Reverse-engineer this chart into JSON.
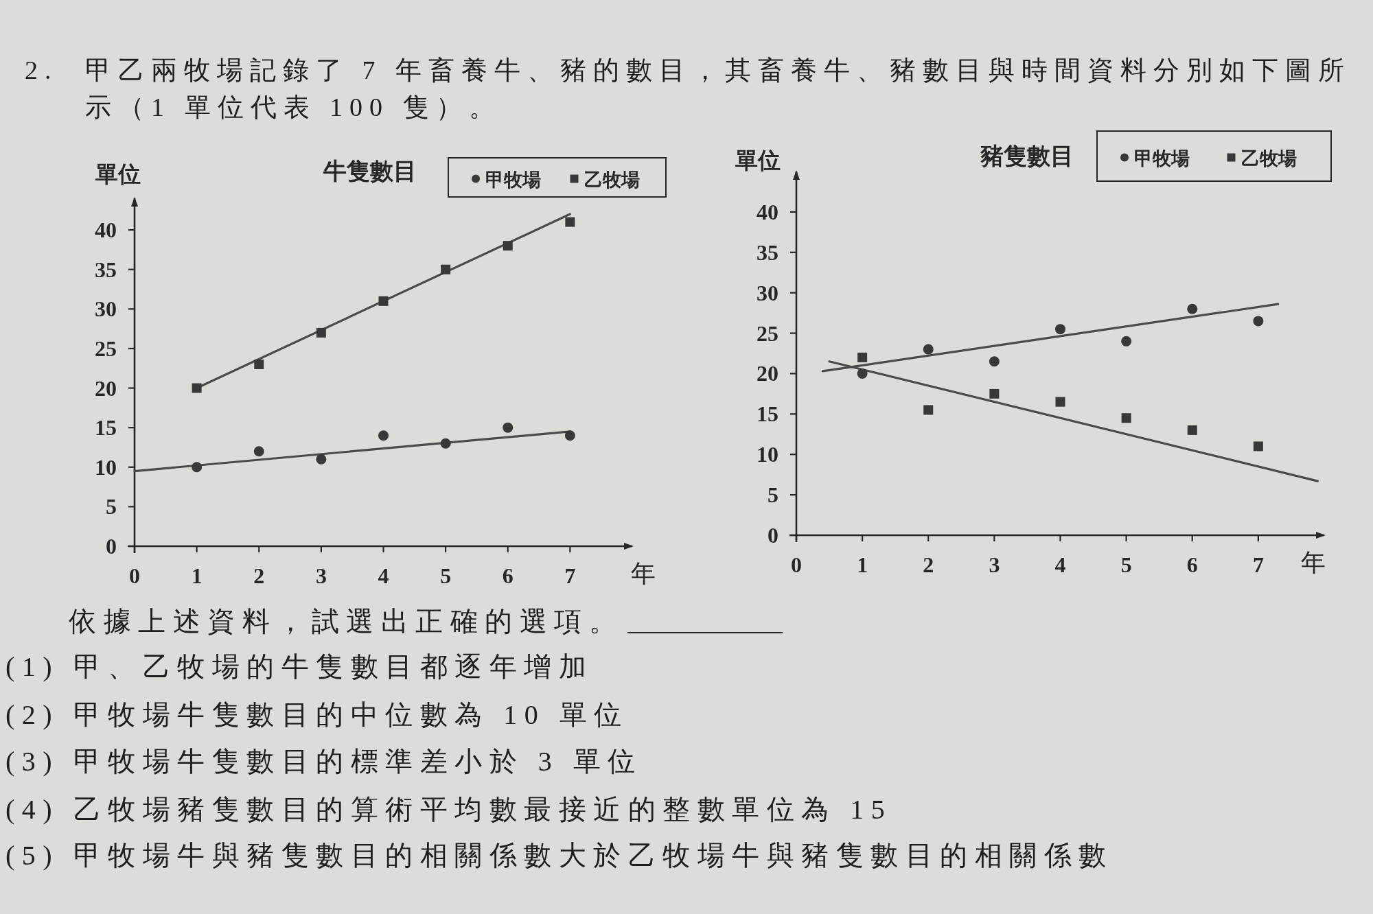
{
  "chart_data": [
    {
      "type": "other",
      "annotations": [
        "2.",
        "甲乙兩牧場記錄了 7 年畜養牛、豬的數目，其畜養牛、豬數目與時間資料分別如下圖所示（1 單位代表 100 隻）。"
      ]
    },
    {
      "type": "scatter",
      "title": "牛隻數目",
      "xlabel": "年",
      "ylabel": "單位",
      "x": [
        1,
        2,
        3,
        4,
        5,
        6,
        7
      ],
      "xlim": [
        0,
        8
      ],
      "ylim": [
        0,
        44
      ],
      "xticks": [
        0,
        1,
        2,
        3,
        4,
        5,
        6,
        7
      ],
      "yticks": [
        0,
        5,
        10,
        15,
        20,
        25,
        30,
        35,
        40
      ],
      "legend": "top right",
      "series": [
        {
          "name": "甲牧場",
          "marker": "circle",
          "color": "#383838",
          "values": [
            10,
            12,
            11,
            14,
            13,
            15,
            14
          ]
        },
        {
          "name": "乙牧場",
          "marker": "square",
          "color": "#383838",
          "values": [
            20,
            23,
            27,
            31,
            35,
            38,
            41
          ]
        },
        {
          "type": "line",
          "x": [
            0,
            7
          ],
          "values": [
            9.5,
            14.5
          ],
          "color": "#4a4a4a"
        },
        {
          "type": "line",
          "x": [
            1,
            7
          ],
          "values": [
            20,
            42
          ],
          "color": "#4a4a4a"
        }
      ]
    },
    {
      "type": "scatter",
      "title": "豬隻數目",
      "xlabel": "年",
      "ylabel": "單位",
      "x": [
        1,
        2,
        3,
        4,
        5,
        6,
        7
      ],
      "xlim": [
        0,
        8
      ],
      "ylim": [
        0,
        45
      ],
      "xticks": [
        0,
        1,
        2,
        3,
        4,
        5,
        6,
        7
      ],
      "yticks": [
        0,
        5,
        10,
        15,
        20,
        25,
        30,
        35,
        40
      ],
      "legend": "top right",
      "series": [
        {
          "name": "甲牧場",
          "marker": "circle",
          "color": "#383838",
          "values": [
            20,
            23,
            21.5,
            25.5,
            24,
            28,
            26.5
          ]
        },
        {
          "name": "乙牧場",
          "marker": "square",
          "color": "#383838",
          "values": [
            22,
            15.5,
            17.5,
            16.5,
            14.5,
            13,
            11
          ]
        },
        {
          "type": "line",
          "x": [
            0.4,
            7.3
          ],
          "values": [
            20.3,
            28.6
          ],
          "color": "#4a4a4a"
        },
        {
          "type": "line",
          "x": [
            0.5,
            7.9
          ],
          "values": [
            21.5,
            6.7
          ],
          "color": "#4a4a4a"
        }
      ]
    },
    {
      "type": "other",
      "annotations": [
        "依據上述資料，試選出正確的選項。",
        "(1) 甲、乙牧場的牛隻數目都逐年增加",
        "(2) 甲牧場牛隻數目的中位數為 10 單位",
        "(3) 甲牧場牛隻數目的標準差小於 3 單位",
        "(4) 乙牧場豬隻數目的算術平均數最接近的整數單位為 15",
        "(5) 甲牧場牛與豬隻數目的相關係數大於乙牧場牛與豬隻數目的相關係數"
      ]
    }
  ]
}
